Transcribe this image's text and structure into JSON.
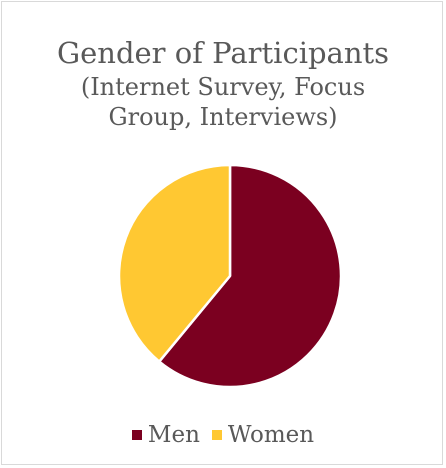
{
  "chart_data": {
    "type": "pie",
    "title": "Gender of Participants",
    "subtitle": "(Internet Survey, Focus\nGroup, Interviews)",
    "categories": [
      "Men",
      "Women"
    ],
    "values": [
      61,
      39
    ],
    "colors": [
      "#7b0020",
      "#ffc832"
    ],
    "legend": "bottom",
    "slice_border_color": "#ffffff"
  }
}
